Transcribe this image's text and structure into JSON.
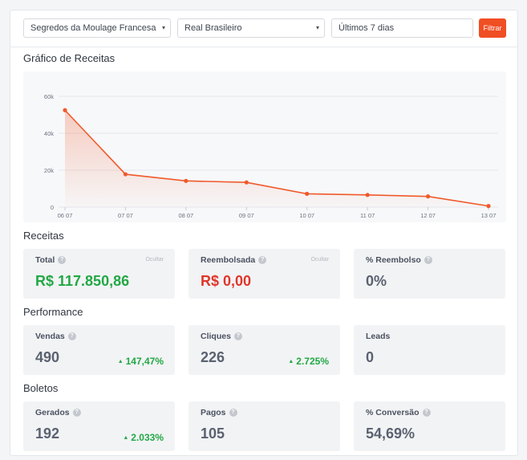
{
  "filters": {
    "product": "Segredos da Moulage Francesa",
    "currency": "Real Brasileiro",
    "period": "Últimos 7 dias",
    "filter_button": "Filtrar"
  },
  "chart": {
    "title": "Gráfico de Receitas"
  },
  "chart_data": {
    "type": "area",
    "x": [
      "06 07",
      "07 07",
      "08 07",
      "09 07",
      "10 07",
      "11 07",
      "12 07",
      "13 07"
    ],
    "values": [
      52500,
      17800,
      14200,
      13400,
      7200,
      6600,
      5800,
      600
    ],
    "yticks": [
      "0",
      "20k",
      "40k",
      "60k"
    ],
    "ylim": [
      0,
      60000
    ],
    "grid": true,
    "line_color": "#f05a2b"
  },
  "receitas": {
    "title": "Receitas",
    "cards": [
      {
        "label": "Total",
        "hide": "Ocultar",
        "value": "R$ 117.850,86"
      },
      {
        "label": "Reembolsada",
        "hide": "Ocultar",
        "value": "R$ 0,00"
      },
      {
        "label": "% Reembolso",
        "value": "0%"
      }
    ]
  },
  "performance": {
    "title": "Performance",
    "cards": [
      {
        "label": "Vendas",
        "value": "490",
        "delta": "147,47%"
      },
      {
        "label": "Cliques",
        "value": "226",
        "delta": "2.725%"
      },
      {
        "label": "Leads",
        "value": "0"
      }
    ]
  },
  "boletos": {
    "title": "Boletos",
    "cards": [
      {
        "label": "Gerados",
        "value": "192",
        "delta": "2.033%"
      },
      {
        "label": "Pagos",
        "value": "105"
      },
      {
        "label": "% Conversão",
        "value": "54,69%"
      }
    ]
  },
  "colors": {
    "accent": "#f04e23",
    "positive": "#22a845",
    "negative": "#e0362a"
  },
  "icons": {
    "help": "question-circle-icon",
    "caret": "caret-down-icon",
    "trend_up": "triangle-up-icon"
  }
}
